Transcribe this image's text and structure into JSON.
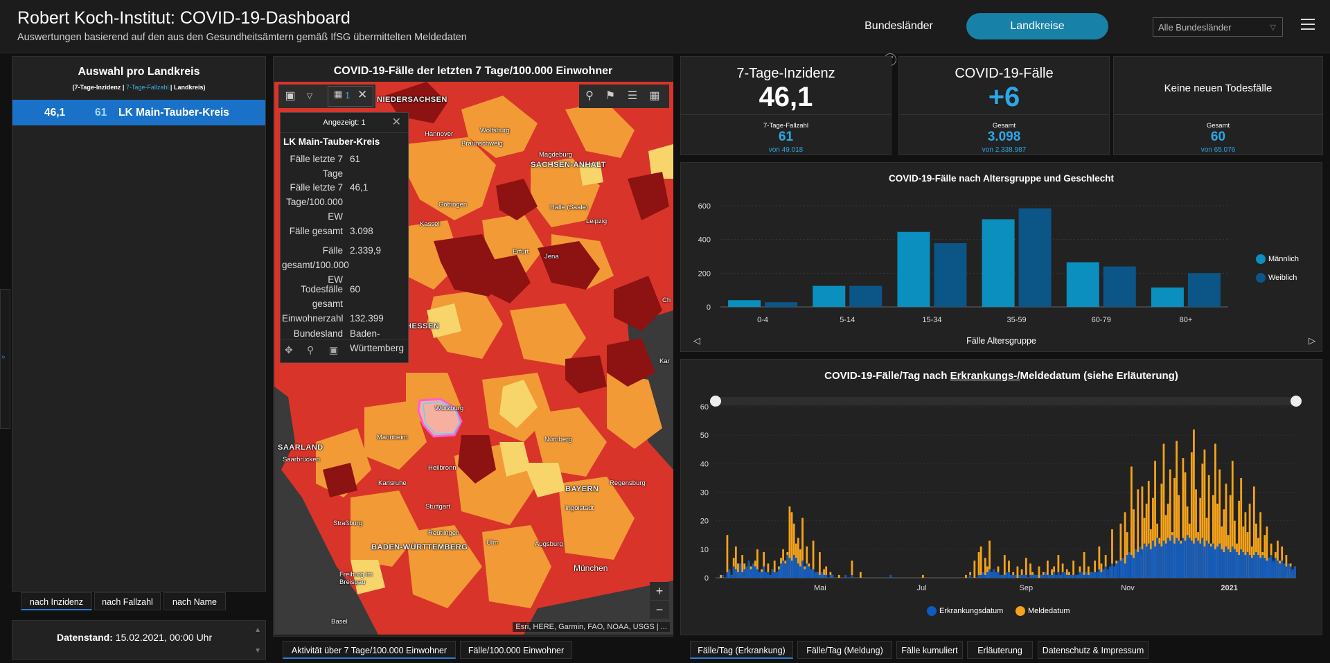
{
  "header": {
    "title": "Robert Koch-Institut: COVID-19-Dashboard",
    "subtitle": "Auswertungen basierend auf den aus den Gesundheitsämtern gemäß IfSG übermittelten Meldedaten",
    "nav_bundeslaender": "Bundesländer",
    "nav_landkreise": "Landkreise",
    "select_value": "Alle Bundesländer"
  },
  "left_panel": {
    "title": "Auswahl pro Landkreis",
    "subtitle_a": "(7-Tage-Inzidenz | ",
    "subtitle_b": "7-Tage-Fallzahl",
    "subtitle_c": " | Landkreis)",
    "row": {
      "incidence": "46,1",
      "cases": "61",
      "name": "LK Main-Tauber-Kreis"
    },
    "sort_tabs": [
      "nach Inzidenz",
      "nach Fallzahl",
      "nach Name"
    ],
    "datenstand_label": "Datenstand:",
    "datenstand_value": " 15.02.2021, 00:00 Uhr"
  },
  "map": {
    "title": "COVID-19-Fälle der letzten 7 Tage/100.000 Einwohner",
    "selection_count": "1",
    "popup": {
      "header": "Angezeigt: 1",
      "name": "LK Main-Tauber-Kreis",
      "rows": [
        {
          "key": "Fälle letzte 7 Tage",
          "value": "61"
        },
        {
          "key": "Fälle letzte 7 Tage/100.000 EW",
          "value": "46,1"
        },
        {
          "key": "Fälle gesamt",
          "value": "3.098"
        },
        {
          "key": "Fälle gesamt/100.000 EW",
          "value": "2.339,9"
        },
        {
          "key": "Todesfälle gesamt",
          "value": "60"
        },
        {
          "key": "Einwohnerzahl",
          "value": "132.399"
        },
        {
          "key": "Bundesland",
          "value": "Baden-Württemberg"
        }
      ]
    },
    "attribution": "Esri, HERE, Garmin, FAO, NOAA, USGS | ...",
    "labels": {
      "niedersachsen": "NIEDERSACHSEN",
      "hannover": "Hannover",
      "wolfsburg": "Wolfsburg",
      "braunschweig": "Braunschweig",
      "magdeburg": "Magdeburg",
      "sachsen_anhalt": "SACHSEN-ANHALT",
      "goettingen": "Göttingen",
      "kassel": "Kassel",
      "halle": "Halle (Saale)",
      "leipzig": "Leipzig",
      "erfurt": "Erfurt",
      "jena": "Jena",
      "hessen": "HESSEN",
      "wuerzburg": "Würzburg",
      "mannheim": "Mannheim",
      "nuernberg": "Nürnberg",
      "saarbruecken": "Saarbrücken",
      "heilbronn": "Heilbronn",
      "karlsruhe": "Karlsruhe",
      "regensburg": "Regensburg",
      "bayern": "BAYERN",
      "ingolstadt": "Ingolstadt",
      "stuttgart": "Stuttgart",
      "strassburg": "Straßburg",
      "reutlingen": "Reutlingen",
      "ulm": "Ulm",
      "augsburg": "Augsburg",
      "baden_wuerttemberg": "BADEN-WÜRTTEMBERG",
      "muenchen": "München",
      "freiburg": "Freiburg im Breisgau",
      "basel": "Basel",
      "saarland": "SAARLAND",
      "chemnitz_part": "Ch",
      "karlsbad_part": "Kar"
    },
    "bottom_tabs": [
      "Aktivität über 7 Tage/100.000 Einwohner",
      "Fälle/100.000 Einwohner"
    ]
  },
  "stats": {
    "incidence": {
      "title": "7-Tage-Inzidenz",
      "value": "46,1",
      "sub_label": "7-Tage-Fallzahl",
      "sub_value": "61",
      "sub_of": "von 49.018"
    },
    "cases": {
      "title": "COVID-19-Fälle",
      "value": "+6",
      "sub_label": "Gesamt",
      "sub_value": "3.098",
      "sub_of": "von 2.338.987"
    },
    "deaths": {
      "title": "Keine neuen Todesfälle",
      "sub_label": "Gesamt",
      "sub_value": "60",
      "sub_of": "von 65.076"
    }
  },
  "colors": {
    "accent": "#1781a8",
    "male": "#0a8fbf",
    "female": "#0b5687",
    "erkrankung": "#0f5bc2",
    "meldung": "#f5a31a",
    "map_dark": "#8d1212",
    "map_red": "#d9342a",
    "map_orange": "#f19a36",
    "map_yellow": "#f7d56b",
    "highlight": "#ff5fd2"
  },
  "age_chart": {
    "xtitle": "Fälle Altersgruppe",
    "legend": [
      "Männlich",
      "Weiblich"
    ]
  },
  "timeline": {
    "title_a": "COVID-19-Fälle/Tag nach ",
    "title_link": "Erkrankungs-/",
    "title_b": "Meldedatum (siehe Erläuterung)",
    "legend": [
      "Erkrankungsdatum",
      "Meldedatum"
    ],
    "bottom_tabs": [
      "Fälle/Tag (Erkrankung)",
      "Fälle/Tag (Meldung)",
      "Fälle kumuliert",
      "Erläuterung",
      "Datenschutz & Impressum"
    ]
  },
  "chart_data": [
    {
      "type": "bar",
      "title": "COVID-19-Fälle nach Altersgruppe und Geschlecht",
      "xlabel": "Fälle Altersgruppe",
      "ylabel": "",
      "categories": [
        "0-4",
        "5-14",
        "15-34",
        "35-59",
        "60-79",
        "80+"
      ],
      "series": [
        {
          "name": "Männlich",
          "values": [
            40,
            125,
            445,
            520,
            265,
            115
          ]
        },
        {
          "name": "Weiblich",
          "values": [
            28,
            125,
            378,
            585,
            240,
            200
          ]
        }
      ],
      "ylim": [
        0,
        600
      ],
      "yticks": [
        0,
        200,
        400,
        600
      ],
      "grid": true,
      "legend": "right"
    },
    {
      "type": "bar",
      "title": "COVID-19-Fälle/Tag nach Erkrankungs-/Meldedatum (siehe Erläuterung)",
      "xlabel": "",
      "ylabel": "",
      "x_tick_labels": [
        "Mai",
        "Jul",
        "Sep",
        "Nov",
        "2021"
      ],
      "ylim": [
        0,
        60
      ],
      "yticks": [
        0,
        10,
        20,
        30,
        40,
        50,
        60
      ],
      "x_range": [
        "2020-03-01",
        "2021-02-14"
      ],
      "series": [
        {
          "name": "Erkrankungsdatum",
          "description": "daily cases by onset date (blue)",
          "values": [
            0,
            0,
            0,
            1,
            0,
            2,
            3,
            1,
            4,
            3,
            2,
            5,
            2,
            3,
            4,
            6,
            3,
            5,
            4,
            3,
            2,
            2,
            4,
            2,
            2,
            1,
            3,
            2,
            2,
            3,
            5,
            6,
            5,
            8,
            7,
            6,
            8,
            7,
            5,
            4,
            6,
            3,
            5,
            4,
            3,
            3,
            2,
            2,
            1,
            2,
            1,
            1,
            0,
            1,
            1,
            0,
            0,
            0,
            0,
            0,
            1,
            0,
            0,
            1,
            0,
            0,
            0,
            0,
            0,
            0,
            0,
            0,
            0,
            0,
            0,
            0,
            0,
            0,
            0,
            0,
            0,
            1,
            0,
            0,
            0,
            0,
            0,
            0,
            0,
            0,
            0,
            0,
            0,
            0,
            0,
            0,
            0,
            0,
            0,
            0,
            0,
            0,
            0,
            0,
            0,
            0,
            0,
            0,
            0,
            0,
            0,
            0,
            0,
            0,
            0,
            0,
            0,
            0,
            1,
            0,
            0,
            0,
            1,
            1,
            2,
            1,
            2,
            3,
            2,
            3,
            2,
            2,
            1,
            1,
            1,
            2,
            2,
            1,
            1,
            1,
            0,
            1,
            1,
            1,
            1,
            0,
            1,
            1,
            1,
            1,
            0,
            1,
            1,
            2,
            1,
            1,
            1,
            2,
            1,
            2,
            1,
            2,
            2,
            1,
            1,
            1,
            1,
            1,
            1,
            2,
            2,
            1,
            2,
            1,
            2,
            2,
            2,
            2,
            3,
            2,
            3,
            4,
            3,
            4,
            5,
            4,
            5,
            6,
            6,
            7,
            5,
            8,
            9,
            8,
            7,
            10,
            9,
            11,
            10,
            12,
            11,
            12,
            10,
            13,
            11,
            14,
            12,
            11,
            13,
            12,
            14,
            13,
            15,
            12,
            14,
            13,
            12,
            14,
            13,
            15,
            14,
            13,
            12,
            14,
            13,
            12,
            14,
            11,
            13,
            12,
            11,
            12,
            10,
            11,
            12,
            10,
            9,
            11,
            10,
            9,
            11,
            10,
            9,
            8,
            10,
            9,
            8,
            9,
            8,
            7,
            8,
            9,
            8,
            7,
            8,
            7,
            6,
            7,
            8,
            6,
            7,
            6,
            5,
            6,
            5,
            4,
            5,
            4,
            3,
            4,
            3,
            2,
            3,
            2,
            1
          ]
        },
        {
          "name": "Meldedatum",
          "description": "daily cases by report date (orange)",
          "values": [
            0,
            0,
            1,
            0,
            0,
            15,
            2,
            0,
            7,
            11,
            5,
            2,
            8,
            5,
            3,
            5,
            4,
            2,
            6,
            10,
            1,
            3,
            9,
            1,
            5,
            0,
            3,
            6,
            2,
            4,
            7,
            10,
            6,
            9,
            25,
            23,
            19,
            12,
            14,
            10,
            21,
            4,
            11,
            5,
            3,
            13,
            0,
            2,
            9,
            1,
            3,
            4,
            0,
            2,
            1,
            0,
            0,
            1,
            0,
            0,
            0,
            0,
            0,
            6,
            0,
            0,
            0,
            2,
            0,
            0,
            0,
            0,
            0,
            0,
            0,
            0,
            0,
            0,
            0,
            0,
            0,
            0,
            0,
            0,
            0,
            0,
            0,
            0,
            0,
            0,
            0,
            0,
            0,
            0,
            0,
            0,
            1,
            0,
            0,
            0,
            0,
            0,
            0,
            0,
            0,
            0,
            0,
            0,
            0,
            0,
            0,
            0,
            0,
            0,
            0,
            0,
            1,
            0,
            2,
            0,
            6,
            0,
            9,
            11,
            0,
            7,
            4,
            13,
            2,
            3,
            0,
            4,
            0,
            1,
            8,
            0,
            6,
            0,
            2,
            0,
            4,
            0,
            3,
            0,
            7,
            0,
            5,
            2,
            1,
            0,
            4,
            0,
            2,
            0,
            6,
            0,
            3,
            4,
            0,
            8,
            0,
            5,
            0,
            3,
            2,
            0,
            6,
            0,
            1,
            4,
            0,
            9,
            0,
            4,
            2,
            0,
            6,
            0,
            11,
            5,
            0,
            8,
            0,
            3,
            17,
            0,
            6,
            0,
            19,
            5,
            23,
            16,
            0,
            39,
            24,
            10,
            31,
            8,
            32,
            21,
            26,
            34,
            17,
            28,
            41,
            19,
            14,
            33,
            47,
            22,
            26,
            38,
            16,
            35,
            48,
            29,
            13,
            42,
            37,
            25,
            19,
            44,
            52,
            31,
            16,
            28,
            40,
            45,
            21,
            36,
            12,
            29,
            47,
            26,
            38,
            18,
            24,
            33,
            15,
            29,
            41,
            20,
            12,
            27,
            35,
            18,
            23,
            16,
            26,
            11,
            32,
            19,
            14,
            23,
            9,
            15,
            18,
            7,
            12,
            5,
            9,
            13,
            6,
            11,
            4,
            8,
            3,
            5,
            2,
            4
          ]
        }
      ],
      "legend": "bottom"
    }
  ]
}
